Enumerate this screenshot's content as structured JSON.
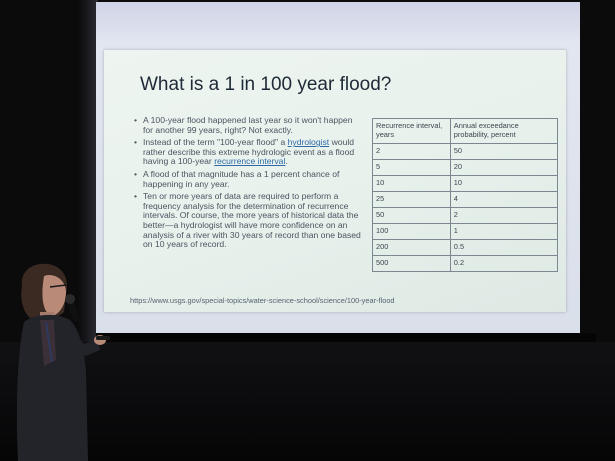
{
  "slide": {
    "title": "What is a 1 in 100 year flood?",
    "bullets": [
      {
        "text": "A 100-year flood happened last year so it won't happen for another 99 years, right? Not exactly."
      },
      {
        "part1": "Instead of the term \"100-year flood\" a ",
        "link1": "hydrologist",
        "part2": " would rather describe this extreme hydrologic event as a flood having a 100-year ",
        "link2": "recurrence interval",
        "part3": "."
      },
      {
        "text": "A flood of that magnitude has a 1 percent chance of happening in any year."
      },
      {
        "text": "Ten or more years of data are required to perform a frequency analysis for the determination of recurrence intervals. Of course, the more years of historical data the better—a hydrologist will have more confidence on an analysis of a river with 30 years of record than one based on 10 years of record."
      }
    ],
    "table": {
      "headers": [
        "Recurrence interval, years",
        "Annual exceedance probability, percent"
      ],
      "rows": [
        [
          "2",
          "50"
        ],
        [
          "5",
          "20"
        ],
        [
          "10",
          "10"
        ],
        [
          "25",
          "4"
        ],
        [
          "50",
          "2"
        ],
        [
          "100",
          "1"
        ],
        [
          "200",
          "0.5"
        ],
        [
          "500",
          "0.2"
        ]
      ]
    },
    "source_url": "https://www.usgs.gov/special-topics/water-science-school/science/100-year-flood"
  },
  "colors": {
    "slide_background": "#e8f1ec",
    "title_text": "#1e2a36",
    "body_text": "#4a5560",
    "link": "#2e6aa5",
    "room": "#0b0b0c"
  }
}
